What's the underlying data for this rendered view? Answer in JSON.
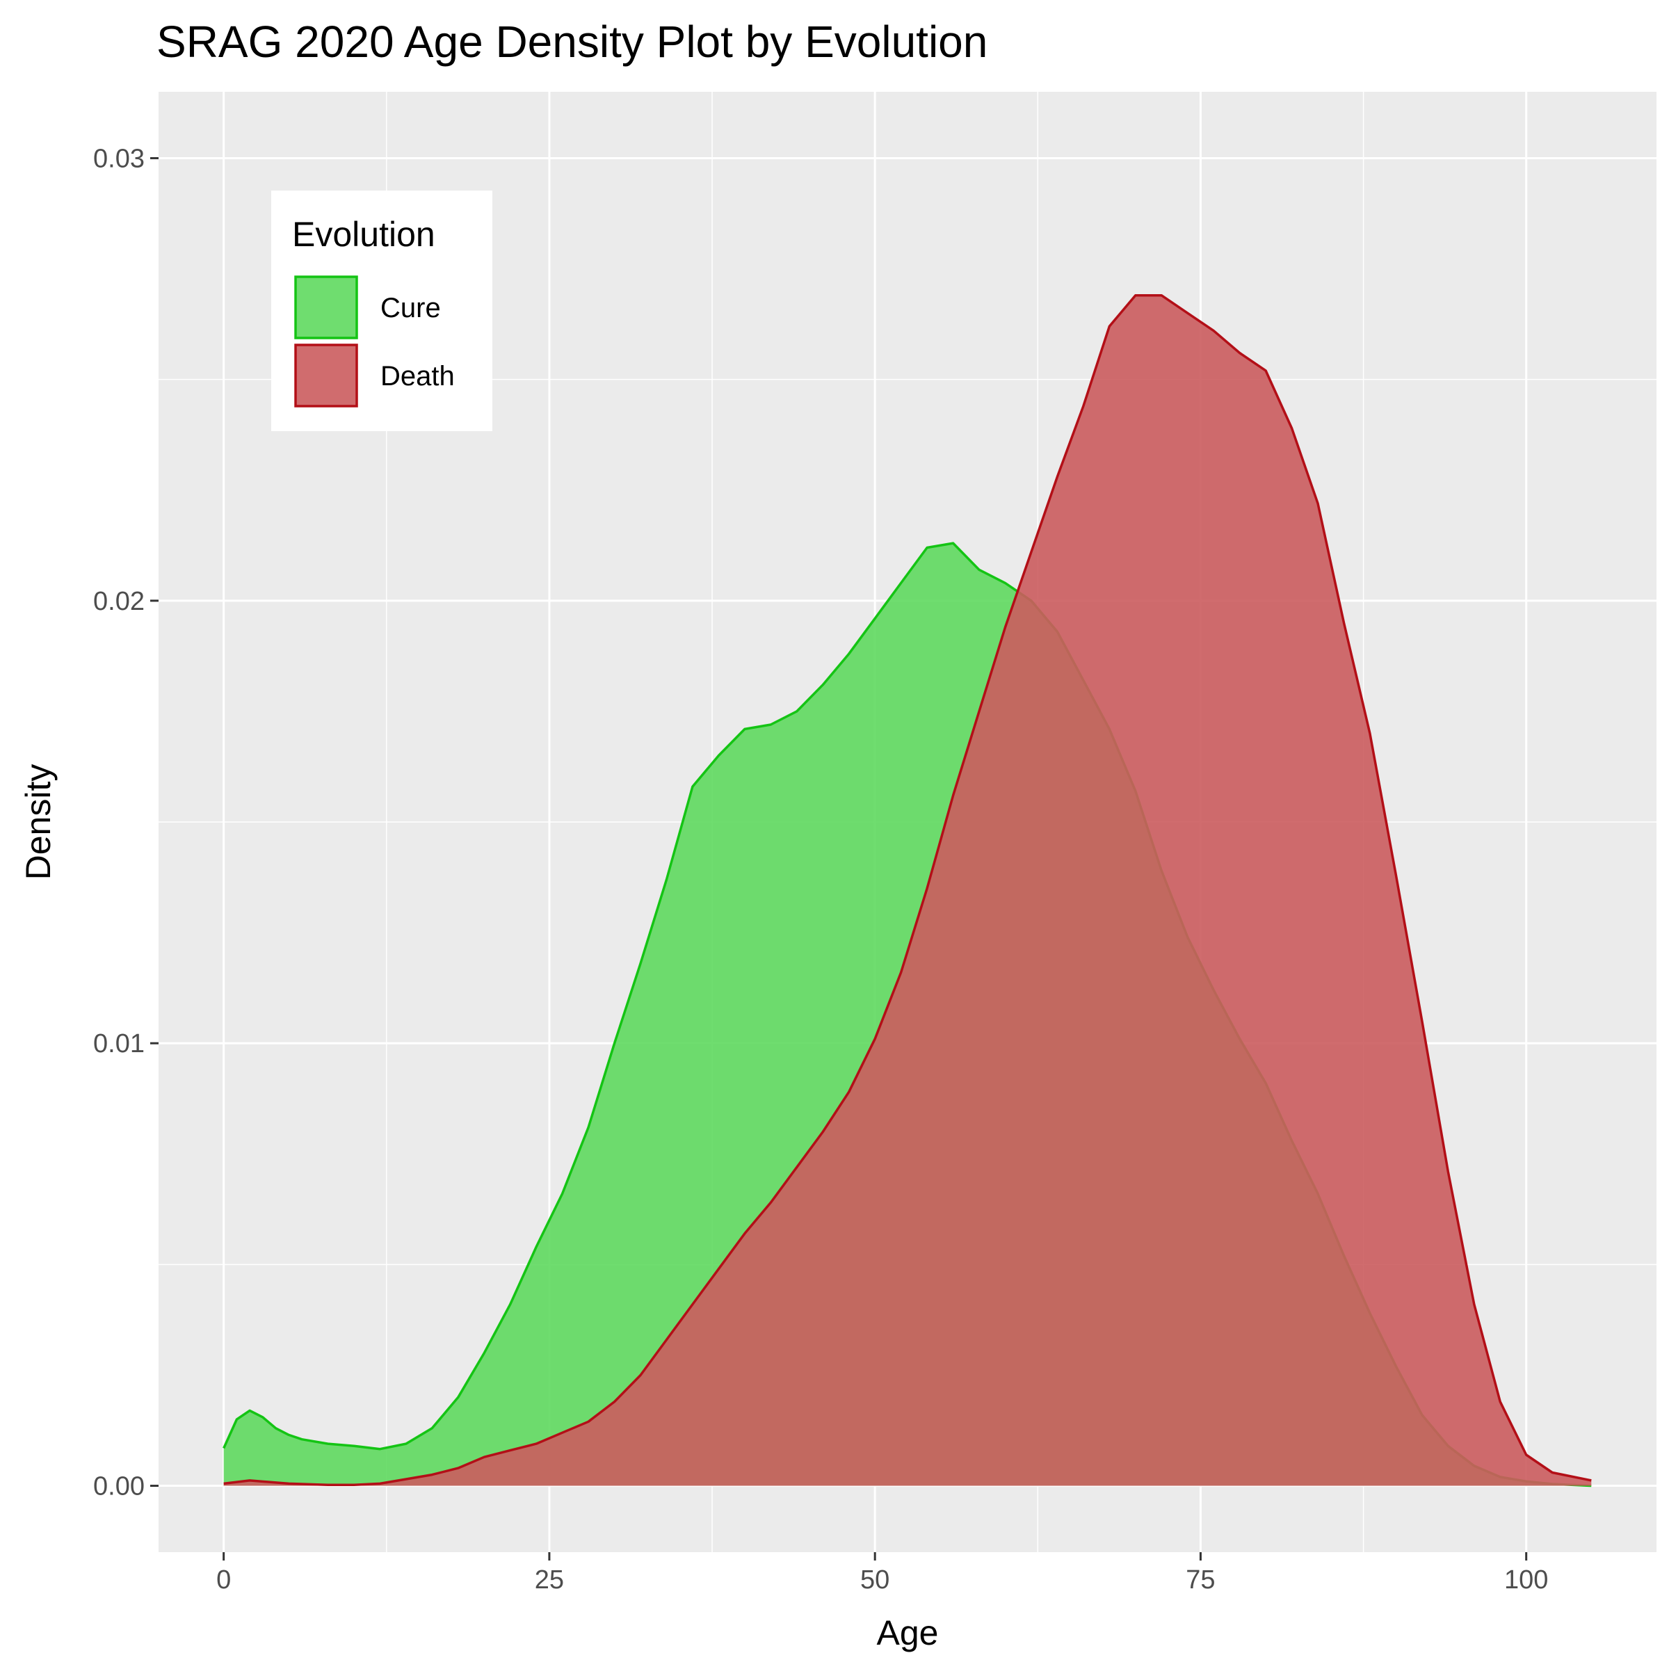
{
  "chart_data": {
    "type": "area",
    "title": "SRAG 2020 Age Density Plot by Evolution",
    "xlabel": "Age",
    "ylabel": "Density",
    "xlim": [
      -5,
      110
    ],
    "ylim": [
      -0.0015,
      0.0315
    ],
    "xticks": [
      0,
      25,
      50,
      75,
      100
    ],
    "xtick_labels": [
      "0",
      "25",
      "50",
      "75",
      "100"
    ],
    "yticks": [
      0,
      0.01,
      0.02,
      0.03
    ],
    "ytick_labels": [
      "0.00",
      "0.01",
      "0.02",
      "0.03"
    ],
    "grid": true,
    "legend": {
      "title": "Evolution",
      "position": "top-left"
    },
    "series": [
      {
        "name": "Cure",
        "fill": "#5fd95f",
        "stroke": "#14c414",
        "x": [
          0,
          1,
          2,
          3,
          4,
          5,
          6,
          8,
          10,
          12,
          14,
          16,
          18,
          20,
          22,
          24,
          26,
          28,
          30,
          32,
          34,
          36,
          38,
          40,
          42,
          44,
          46,
          48,
          50,
          52,
          54,
          56,
          58,
          60,
          62,
          64,
          66,
          68,
          70,
          72,
          74,
          76,
          78,
          80,
          82,
          84,
          86,
          88,
          90,
          92,
          94,
          96,
          98,
          100,
          102,
          105
        ],
        "y": [
          0.00085,
          0.0015,
          0.0017,
          0.00155,
          0.0013,
          0.00115,
          0.00105,
          0.00095,
          0.0009,
          0.00083,
          0.00095,
          0.0013,
          0.002,
          0.003,
          0.0041,
          0.0054,
          0.0066,
          0.0081,
          0.01,
          0.0118,
          0.0137,
          0.0158,
          0.0165,
          0.0171,
          0.0172,
          0.0175,
          0.0181,
          0.0188,
          0.0196,
          0.0204,
          0.0212,
          0.0213,
          0.0207,
          0.0204,
          0.02,
          0.0193,
          0.0182,
          0.0171,
          0.0157,
          0.0139,
          0.0124,
          0.0112,
          0.0101,
          0.0091,
          0.0078,
          0.0066,
          0.0052,
          0.0039,
          0.0027,
          0.0016,
          0.0009,
          0.00045,
          0.0002,
          0.0001,
          4e-05,
          0.0
        ]
      },
      {
        "name": "Death",
        "fill": "#cb5c5e",
        "stroke": "#b30f17",
        "x": [
          0,
          2,
          5,
          8,
          10,
          12,
          14,
          16,
          18,
          20,
          22,
          24,
          26,
          28,
          30,
          32,
          34,
          36,
          38,
          40,
          42,
          44,
          46,
          48,
          50,
          52,
          54,
          56,
          58,
          60,
          62,
          64,
          66,
          68,
          70,
          72,
          74,
          76,
          78,
          80,
          82,
          84,
          86,
          88,
          90,
          92,
          94,
          96,
          98,
          100,
          102,
          105
        ],
        "y": [
          5e-05,
          0.00012,
          5e-05,
          2e-05,
          2e-05,
          5e-05,
          0.00015,
          0.00025,
          0.0004,
          0.00065,
          0.0008,
          0.00095,
          0.0012,
          0.00145,
          0.0019,
          0.0025,
          0.0033,
          0.0041,
          0.0049,
          0.0057,
          0.0064,
          0.0072,
          0.008,
          0.0089,
          0.0101,
          0.0116,
          0.0135,
          0.0156,
          0.0175,
          0.0194,
          0.0211,
          0.0228,
          0.0244,
          0.0262,
          0.0269,
          0.0269,
          0.0265,
          0.0261,
          0.0256,
          0.0252,
          0.0239,
          0.0222,
          0.0195,
          0.017,
          0.0138,
          0.0105,
          0.0071,
          0.0041,
          0.0019,
          0.0007,
          0.0003,
          0.00012
        ]
      }
    ]
  }
}
